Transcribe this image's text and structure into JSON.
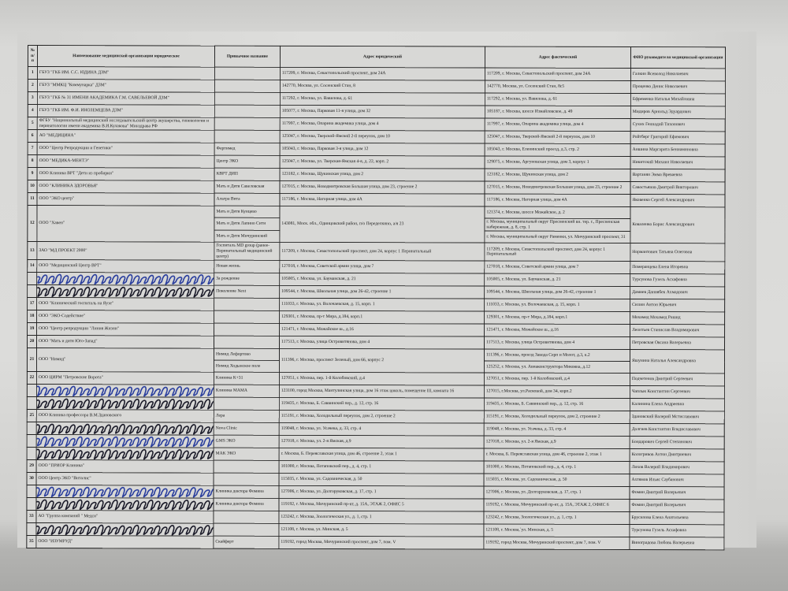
{
  "header": {
    "num": "№ п/п",
    "name": "Наименование медицинской организации юридическое",
    "common": "Привычное название",
    "legal": "Адрес юридический",
    "actual": "Адрес фактический",
    "head": "ФИО руководителя медицинской организации"
  },
  "scribble_colors": [
    "#2b3f9e",
    "#1c1c2a"
  ],
  "rows": [
    {
      "num": "1",
      "name": "ГБУЗ \"ГКБ ИМ. С.С. ЮДИНА ДЗМ\"",
      "common": [
        ""
      ],
      "legal": "117209, г. Москва, Севастопольский проспект, дом 24А",
      "actual": [
        "117209, г. Москва, Севастопольский проспект, дом 24А"
      ],
      "head": "Галкин Всеволод Николаевич"
    },
    {
      "num": "2",
      "name": "ГБУЗ \"ММКЦ \"Коммунарка\" ДЗМ\"",
      "common": [
        ""
      ],
      "legal": "142770, Москва, ул. Сосенский Стан, 8",
      "actual": [
        "142770, Москва, ул. Сосенский Стан, 8с5"
      ],
      "head": "Проценко Денис Николаевич"
    },
    {
      "num": "3",
      "name": "ГБУЗ \"ГКБ № 31 ИМЕНИ АКАДЕМИКА Г.М. САВЕЛЬЕВОЙ ДЗМ\"",
      "common": [
        ""
      ],
      "legal": "117292, г. Москва, ул. Вавилова, д. 61",
      "actual": [
        "117292, г. Москва, ул. Вавилова, д. 61"
      ],
      "head": "Ефременко Наталья Михайловна"
    },
    {
      "num": "4",
      "name": "ГБУЗ \"ГКБ ИМ. Ф.И. ИНОЗЕМЦЕВА ДЗМ\"",
      "common": [
        ""
      ],
      "legal": "105077, г. Москва, Парковая 11-я улица, дом 32",
      "actual": [
        "105187, г. Москва, шоссе Измайловское, д. 49"
      ],
      "head": "Мидиров Арнольд Эдуардович"
    },
    {
      "num": "5",
      "name": "ФГБУ \"Национальный медицинский исследовательский центр акушерства, гинекологии и перинатологии имени академика В.И.Кулакова\" Минздрава РФ",
      "common": [
        ""
      ],
      "legal": "117997, г. Москва, Опарина академика улица, дом 4",
      "actual": [
        "117997, г. Москва, Опарина академика улица, дом 4"
      ],
      "head": "Сухих Геннадий Тихонович"
    },
    {
      "num": "6",
      "name": "АО \"МЕДИЦИНА\"",
      "common": [
        ""
      ],
      "legal": "125047, г. Москва, Тверской-Ямской 2-й переулок, дом 10",
      "actual": [
        "125047, г. Москва, Тверской-Ямской 2-й переулок, дом 10"
      ],
      "head": "Ройтберг Григорий Ефимович"
    },
    {
      "num": "7",
      "name": "ООО \"Центр Репродукции и Генетики\"",
      "common": [
        "Фертимед"
      ],
      "legal": "105043, г. Москва, Парковая 3-я улица, дом 12",
      "actual": [
        "105043, г. Москва, Еленинский проезд, д.3, стр. 2"
      ],
      "head": "Аншина Маргарита Бениаминовна"
    },
    {
      "num": "8",
      "name": "ООО \"МЕДИКА-МЕНТЭ\"",
      "common": [
        "Центр ЭКО"
      ],
      "legal": "125047, г. Москва, ул. Тверская-Ямская 4-я, д. 22, корп. 2",
      "actual": [
        "129075, г. Москва, Аргуновская улица, дом 3, корпус 1"
      ],
      "head": "Никитский Михаил Николаевич"
    },
    {
      "num": "9",
      "name": "ООО Клиника ВРТ \"Дети из пробирки\"",
      "common": [
        "КВРТ ДИП"
      ],
      "legal": "123182, г. Москва, Щукинская улица, дом 2",
      "actual": [
        "123182, г. Москва, Щукинская улица, дом 2"
      ],
      "head": "Вартанян Эмма Вреваевна"
    },
    {
      "num": "10",
      "name": "ООО \"КЛИНИКА ЗДОРОВЬЯ\"",
      "common": [
        "Мать и Дитя Савеловская"
      ],
      "legal": "127015, г. Москва, Новодмитровская Большая улица, дом 23, строение 2",
      "actual": [
        "127015, г. Москва, Новодмитровская Большая улица, дом 23, строение 2"
      ],
      "head": "Савостьянов Дмитрий Викторович"
    },
    {
      "num": "11",
      "name": "ООО \"ЭКО центр\"",
      "common": [
        "Альтра Вита"
      ],
      "legal": "117186, г. Москва, Нагорная улица, дом 4А",
      "actual": [
        "117186, г. Москва, Нагорная улица, дом 4А"
      ],
      "head": "Яковенко Сергей Александрович"
    },
    {
      "num": "12",
      "name": "ООО \"Хавен\"",
      "common": [
        "Мать и Дитя Кунцево",
        "Мать и Дитя Лапино Сити",
        "Мать и Дитя Мичуринский"
      ],
      "legal": "143081, Моск. обл., Одинцовский район, п/о Переделкино, а/я 23",
      "actual": [
        "121374, г. Москва, шоссе Можайское, д. 2",
        "г. Москва, муниципальный округ Пресненский вн. тер. г., Пресненская набережная, д. 8, стр. 1",
        "г. Москва, муниципальный округ Раменки, ул. Мичуринский проспект, 31"
      ],
      "head": "Коваленко Борис Александрович"
    },
    {
      "num": "13",
      "name": "ЗАО \"МД ПРОЕКТ 2000\"",
      "common": [
        "Госпиталь MD group (ранее- Перинатальный медицинский центр)"
      ],
      "legal": "117209, г. Москва, Севастопольский проспект, дом 24, корпус 1 Перинатальный",
      "actual": [
        "117209, г. Москва, Севастопольский проспект, дом 24, корпус 1 Перинатальный"
      ],
      "head": "Нормантович Татьяна Олеговна"
    },
    {
      "num": "14",
      "name": "ООО \"Медицинский Центр ВРТ\"",
      "common": [
        "Новая жизнь"
      ],
      "legal": "127018, г. Москва, Советской армии улица, дом 7",
      "actual": [
        "127018, г. Москва, Советской армии улица, дом 7"
      ],
      "head": "Померанцева Елена Игоревна"
    },
    {
      "num": "",
      "name": "",
      "redacted": true,
      "common": [
        "За рождение"
      ],
      "legal": "105005, г. Москва, ул. Бауманская, д. 21",
      "actual": [
        "105005, г. Москва, ул. Бауманская, д. 21"
      ],
      "head": "Турсунова Гузель Асхафовна"
    },
    {
      "num": "",
      "name": "",
      "redacted": true,
      "common": [
        "Поколение Next"
      ],
      "legal": "109544, г. Москва, Школьная улица, дом 26-42, строение 1",
      "actual": [
        "109544, г. Москва, Школьная улица, дом 26-42, строение 1"
      ],
      "head": "Дамиев Даниябек Ахмадович"
    },
    {
      "num": "17",
      "name": "ООО \"Клинический госпиталь на Яузе\"",
      "common": [
        ""
      ],
      "legal": "111033, г. Москва, ул. Волочаевская, д. 15, корп. 1",
      "actual": [
        "111033, г. Москва, ул. Волочаевская, д. 15, корп. 1"
      ],
      "head": "Сюзин Антон Юрьевич"
    },
    {
      "num": "18",
      "name": "ООО \"ЭКО-Содействие\"",
      "common": [
        ""
      ],
      "legal": "129301, г. Москва, пр-т Мира, д.184, корп.1",
      "actual": [
        "129301, г. Москва, пр-т Мира, д.184, корп.1"
      ],
      "head": "Мохамед Мохамед Рашид"
    },
    {
      "num": "19",
      "name": "ООО \"Центр репродукции \"Линия Жизни\"",
      "common": [
        ""
      ],
      "legal": "121471, г. Москва, Можайское ш., д.16",
      "actual": [
        "121471, г. Москва, Можайское ш., д.16"
      ],
      "head": "Леонтьев Станислав Владимирович"
    },
    {
      "num": "20",
      "name": "ООО \"Мать и дитя Юго-Запад\"",
      "common": [
        ""
      ],
      "legal": "117513, г. Москва, улица Островитянова, дом 4",
      "actual": [
        "117513, г. Москва, улица Островитянова, дом 4"
      ],
      "head": "Петровская Оксана Валерьевна"
    },
    {
      "num": "21",
      "name": "ООО \"Нимид\"",
      "common": [
        "Нимид Лефортово",
        "Нимид Ходынское поле"
      ],
      "legal": "111396, г. Москва, проспект Зеленый, дом 66, корпус 2",
      "actual": [
        "111396, г. Москва, проезд Завода Серп и Молот, д.3, к.2",
        "125252, г. Москва, ул. Авиаконструктора Микояна, д.12"
      ],
      "head": "Яшунина Наталья Александровна"
    },
    {
      "num": "22",
      "name": "ООО ЦИРМ \"Петровские Ворота\"",
      "common": [
        "Клиника К+31"
      ],
      "legal": "127051, г. Москва, пер. 1-й Колобовский, д.4",
      "actual": [
        "127051, г. Москва, пер. 1-й Колобовский, д.4"
      ],
      "head": "Подчетенов Дмитрий Сергеевич"
    },
    {
      "num": "",
      "name": "",
      "redacted": true,
      "common": [
        "Клиника МАМА"
      ],
      "legal": "123100, город Москва, Мантулинская улица, дом 16 этаж цоколь, помещение III, комната 16",
      "actual": [
        "127015, г.Москва, ул.Расковой, дом 34, корп.2"
      ],
      "head": "Чаплык Константин Сергеевич"
    },
    {
      "num": "",
      "name": "",
      "redacted": true,
      "common": [
        ""
      ],
      "legal": "119435, г. Москва, Б. Саввинский пер., д. 12, стр. 16",
      "actual": [
        "119435, г. Москва, Б. Саввинский пер., д. 12, стр. 16"
      ],
      "head": "Калинина Елена Андреевна"
    },
    {
      "num": "25",
      "name": "ООО Клиника профессора В.М.Здановского",
      "common": [
        "Лера"
      ],
      "legal": "115191, г. Москва, Холодильный переулок, дом 2, строение 2",
      "actual": [
        "115191, г. Москва, Холодильный переулок, дом 2, строение 2"
      ],
      "head": "Здановский Валерий Мстиславович"
    },
    {
      "num": "",
      "name": "",
      "redacted": true,
      "common": [
        "Nova Clinic"
      ],
      "legal": "119048, г. Москва, ул. Усачева, д. 33, стр. 4",
      "actual": [
        "119048, г. Москва, ул. Усачева, д. 33, стр. 4"
      ],
      "head": "Долгиев Константин Владиславович"
    },
    {
      "num": "",
      "name": "",
      "redacted": true,
      "common": [
        "GMS ЭКО"
      ],
      "legal": "127018, г. Москва, ул. 2-я Ямская, д.9",
      "actual": [
        "127018, г. Москва, ул. 2-я Ямская, д.9"
      ],
      "head": "Бондарович Сергей Степанович"
    },
    {
      "num": "",
      "name": "",
      "redacted": true,
      "common": [
        "МАК ЭКО"
      ],
      "legal": "г. Москва, Б. Переяславская улица, дом 46, строение 2, этаж 1",
      "actual": [
        "г. Москва, Б. Переяславская улица, дом 46, строение 2, этаж 1"
      ],
      "head": "Кологривов Антон Дмитриевич"
    },
    {
      "num": "29",
      "name": "ООО \"ПРИОР Клиника\"",
      "common": [
        ""
      ],
      "legal": "101000, г. Москва, Потаповский пер., д. 4, стр. 1",
      "actual": [
        "101000, г. Москва, Потаповский пер., д. 4, стр. 1"
      ],
      "head": "Лихов Валерий Владимирович"
    },
    {
      "num": "30",
      "name": "ООО Центр ЭКО \"Виталис\"",
      "common": [
        ""
      ],
      "legal": "115035, г. Москва, ул. Садовническая, д. 50",
      "actual": [
        "115035, г. Москва, ул. Садовническая, д. 50"
      ],
      "head": "Ахтямов Ильяс Саубанович"
    },
    {
      "num": "",
      "name": "",
      "redacted": true,
      "common": [
        "Клиника доктора Фомина"
      ],
      "legal": "127006, г. Москва, ул. Долгоруковская, д. 17, стр. 1",
      "actual": [
        "127006, г. Москва, ул. Долгоруковская, д. 17, стр. 1"
      ],
      "head": "Фомин Дмитрий Валерьевич"
    },
    {
      "num": "",
      "name": "",
      "redacted": true,
      "common": [
        "Клиника доктора Фомина"
      ],
      "legal": "119192, г. Москва, Мичуринский пр-кт, д. 15А, ЭТАЖ 2, ОФИС 5",
      "actual": [
        "119192, г. Москва, Мичуринский пр-кт, д. 15А, ЭТАЖ 2, ОФИС 6"
      ],
      "head": "Фомин Дмитрий Валерьевич"
    },
    {
      "num": "33",
      "name": "АО \"Группа компаний \" Медси\"",
      "common": [
        ""
      ],
      "legal": "123242, г. Москва, Зоологическая ул., д. 1, стр. 1",
      "actual": [
        "123242, г. Москва, Зоологическая ул., д. 1, стр. 1"
      ],
      "head": "Брусилова Елена Анатольевна"
    },
    {
      "num": "",
      "name": "",
      "redacted": true,
      "common": [
        ""
      ],
      "legal": "121108, г. Москва, ул. Минская, д. 5",
      "actual": [
        "121108, г. Москва,`ул. Минская, д. 5"
      ],
      "head": "Турсунова Гузель Асхафовна"
    },
    {
      "num": "35",
      "name": "ООО \"ИЗУМРУД\"",
      "common": [
        "Скайферт"
      ],
      "legal": "119192, город Москва, Мичуринский проспект, дом 7, пом. V",
      "actual": [
        "119192, город Москва, Мичуринский проспект, дом 7, пом. V"
      ],
      "head": "Виноградова Любовь Валерьевна"
    }
  ]
}
